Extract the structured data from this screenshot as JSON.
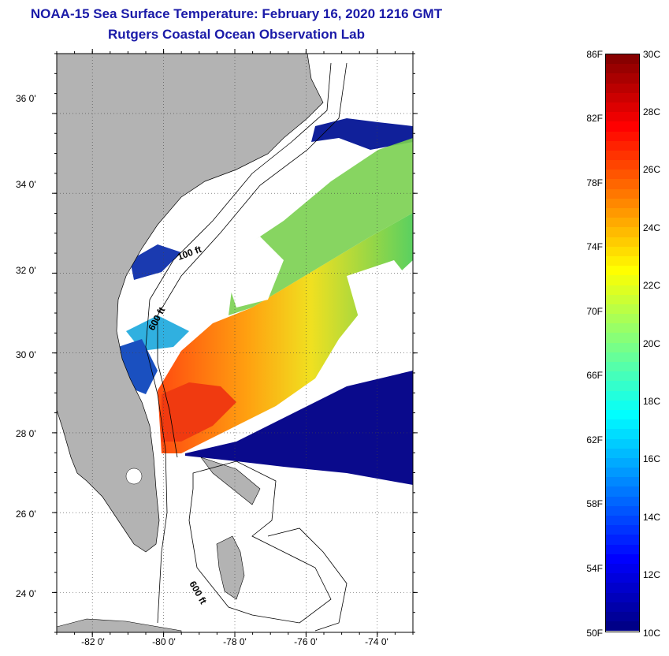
{
  "title": {
    "line1": "NOAA-15 Sea Surface Temperature:  February 16, 2020 1216 GMT",
    "line2": "Rutgers Coastal Ocean Observation Lab"
  },
  "map": {
    "lat_labels": [
      "36 0'",
      "34 0'",
      "32 0'",
      "30 0'",
      "28 0'",
      "26 0'",
      "24 0'"
    ],
    "lon_labels": [
      "-82 0'",
      "-80 0'",
      "-78 0'",
      "-76 0'",
      "-74 0'"
    ],
    "lat_values": [
      36,
      34,
      32,
      30,
      28,
      26,
      24
    ],
    "lon_values": [
      -82,
      -80,
      -78,
      -76,
      -74
    ],
    "lat_range": [
      23,
      37.5
    ],
    "lon_range": [
      -83,
      -73
    ],
    "contour_labels": {
      "c100": "100 ft",
      "c600a": "600 ft",
      "c600b": "600 ft"
    },
    "colors": {
      "land": "#b3b3b3",
      "cold": "#0a0a8c",
      "warm": "#ff6a10",
      "title": "#1a1aa8"
    }
  },
  "colorbar": {
    "fahrenheit_labels": [
      "86F",
      "82F",
      "78F",
      "74F",
      "70F",
      "66F",
      "62F",
      "58F",
      "54F",
      "50F"
    ],
    "celsius_labels": [
      "30C",
      "28C",
      "26C",
      "24C",
      "22C",
      "20C",
      "18C",
      "16C",
      "14C",
      "12C",
      "10C"
    ],
    "min_f": 50,
    "max_f": 86,
    "min_c": 10,
    "max_c": 30
  }
}
